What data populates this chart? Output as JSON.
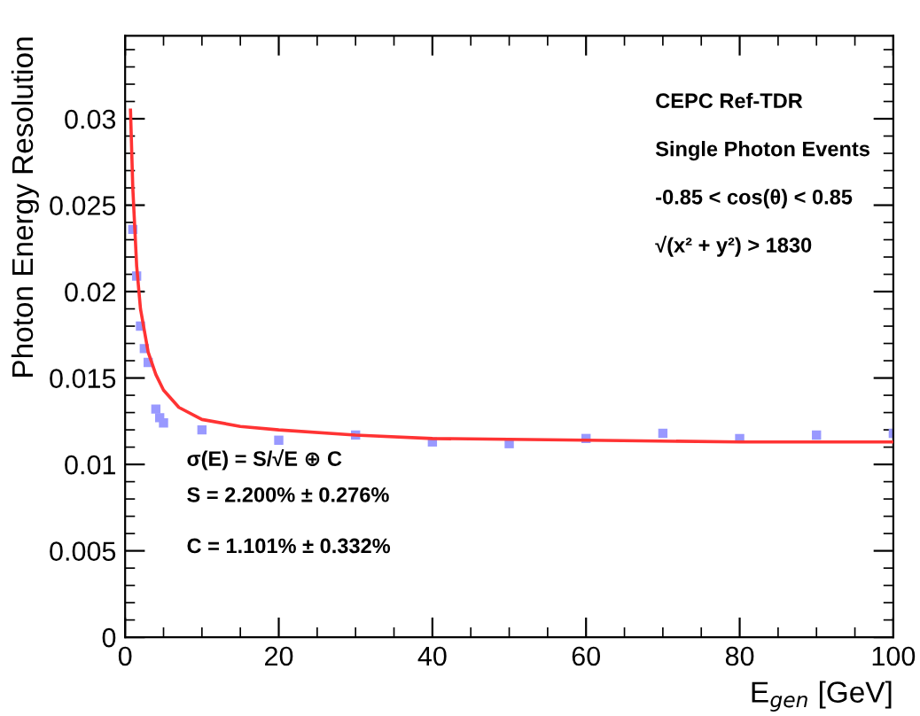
{
  "chart_data": {
    "type": "scatter",
    "xlabel": "E$_{gen}$ [GeV]",
    "ylabel": "Photon Energy Resolution",
    "xlim": [
      0,
      100
    ],
    "ylim": [
      0,
      0.0348
    ],
    "xticks": [
      0,
      20,
      40,
      60,
      80,
      100
    ],
    "yticks": [
      0,
      0.005,
      0.01,
      0.015,
      0.02,
      0.025,
      0.03
    ],
    "grid": false,
    "legend": false,
    "marker": "square",
    "series": [
      {
        "color": "#9999ff",
        "x": [
          1,
          1.5,
          2,
          2.5,
          3,
          4,
          4.5,
          5,
          10,
          20,
          30,
          40,
          50,
          60,
          70,
          80,
          90,
          100
        ],
        "values": [
          0.0236,
          0.0209,
          0.018,
          0.0167,
          0.0159,
          0.0132,
          0.0127,
          0.0124,
          0.012,
          0.0114,
          0.0117,
          0.0113,
          0.0112,
          0.0115,
          0.0118,
          0.0115,
          0.0117,
          0.0118
        ]
      },
      {
        "type": "line",
        "color": "#ff3333",
        "marker": "none",
        "x": [
          0.7,
          1,
          1.5,
          2,
          3,
          4,
          5,
          7,
          10,
          15,
          20,
          30,
          40,
          60,
          80,
          100
        ],
        "values": [
          0.0305,
          0.026,
          0.0215,
          0.019,
          0.0165,
          0.0152,
          0.0143,
          0.0133,
          0.0126,
          0.0122,
          0.012,
          0.0117,
          0.0115,
          0.0114,
          0.0113,
          0.0113
        ]
      }
    ],
    "annotations": [
      "CEPC Ref-TDR",
      "Single Photon Events",
      "-0.85 < cos(θ) < 0.85",
      "√(x² + y²) > 1830",
      "σ(E) = S/√E ⊕ C",
      "S = 2.200% ± 0.276%",
      "C = 1.101% ± 0.332%"
    ]
  }
}
